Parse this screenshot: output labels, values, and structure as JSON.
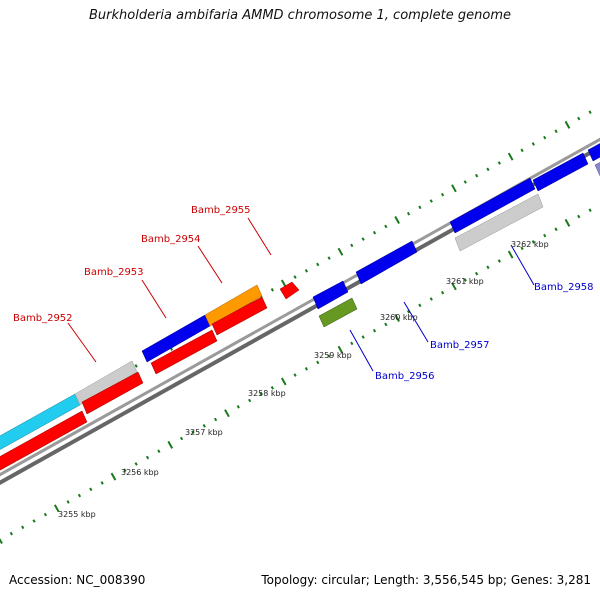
{
  "title": "Burkholderia ambifaria AMMD chromosome 1, complete genome",
  "footer": {
    "accession": "Accession: NC_008390",
    "stats": "Topology: circular; Length: 3,556,545 bp; Genes: 3,281"
  },
  "kbp_markers": [
    {
      "label": "3255 kbp"
    },
    {
      "label": "3256 kbp"
    },
    {
      "label": "3257 kbp"
    },
    {
      "label": "3258 kbp"
    },
    {
      "label": "3259 kbp"
    },
    {
      "label": "3260 kbp"
    },
    {
      "label": "3261 kbp"
    },
    {
      "label": "3262 kbp"
    }
  ],
  "gene_labels": [
    {
      "name": "Bamb_2952",
      "strand": "forward"
    },
    {
      "name": "Bamb_2953",
      "strand": "forward"
    },
    {
      "name": "Bamb_2954",
      "strand": "forward"
    },
    {
      "name": "Bamb_2955",
      "strand": "forward"
    },
    {
      "name": "Bamb_2956",
      "strand": "reverse"
    },
    {
      "name": "Bamb_2957",
      "strand": "reverse"
    },
    {
      "name": "Bamb_2958",
      "strand": "reverse"
    }
  ],
  "colors": {
    "forward_label": "#cc0000",
    "reverse_label": "#0000cc",
    "backbone": "#808080",
    "tick": "#1a7a1a"
  }
}
